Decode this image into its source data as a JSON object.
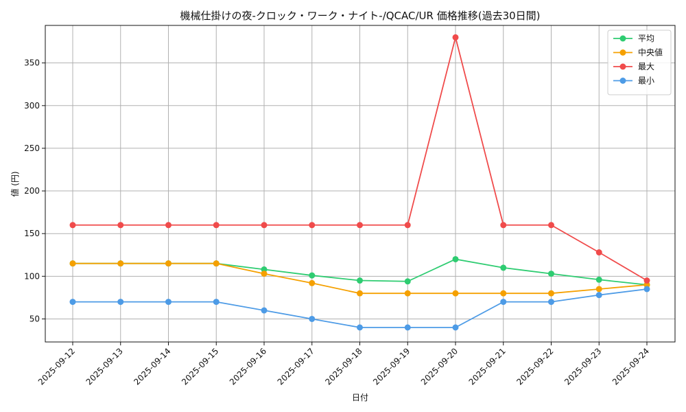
{
  "chart_data": {
    "type": "line",
    "title": "機械仕掛けの夜-クロック・ワーク・ナイト-/QCAC/UR 価格推移(過去30日間)",
    "xlabel": "日付",
    "ylabel": "値 (円)",
    "categories": [
      "2025-09-12",
      "2025-09-13",
      "2025-09-14",
      "2025-09-15",
      "2025-09-16",
      "2025-09-17",
      "2025-09-18",
      "2025-09-19",
      "2025-09-20",
      "2025-09-21",
      "2025-09-22",
      "2025-09-23",
      "2025-09-24"
    ],
    "ylim": [
      23,
      394
    ],
    "yticks": [
      50,
      100,
      150,
      200,
      250,
      300,
      350
    ],
    "grid": true,
    "legend_position": "top-right",
    "series": [
      {
        "name": "平均",
        "color": "#2ecc71",
        "values": [
          115,
          115,
          115,
          115,
          108,
          101,
          95,
          94,
          120,
          110,
          103,
          96,
          90
        ]
      },
      {
        "name": " 中央値",
        "color": "#f5a000",
        "values": [
          115,
          115,
          115,
          115,
          103,
          92,
          80,
          80,
          80,
          80,
          80,
          85,
          90
        ]
      },
      {
        "name": "最大",
        "color": "#f04b4b",
        "values": [
          160,
          160,
          160,
          160,
          160,
          160,
          160,
          160,
          380,
          160,
          160,
          128,
          95
        ]
      },
      {
        "name": "最小",
        "color": "#4d9be6",
        "values": [
          70,
          70,
          70,
          70,
          60,
          50,
          40,
          40,
          40,
          70,
          70,
          78,
          85
        ]
      }
    ]
  }
}
